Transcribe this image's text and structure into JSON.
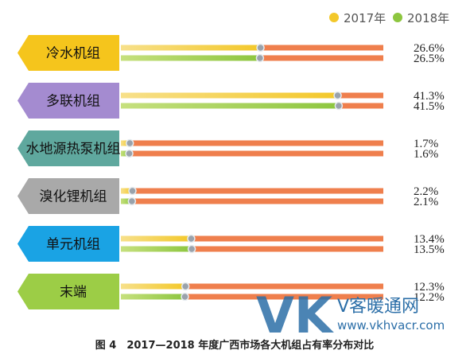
{
  "chart_data": {
    "type": "bar",
    "title": "",
    "caption": "图 4　2017—2018 年度广西市场各大机组占有率分布对比",
    "categories": [
      "冷水机组",
      "多联机组",
      "水地源热泵机组",
      "溴化锂机组",
      "单元机组",
      "末端"
    ],
    "series": [
      {
        "name": "2017年",
        "values": [
          26.6,
          41.3,
          1.7,
          2.2,
          13.4,
          12.3
        ]
      },
      {
        "name": "2018年",
        "values": [
          26.5,
          41.5,
          1.6,
          2.1,
          13.5,
          12.2
        ]
      }
    ],
    "value_labels": [
      [
        "26.6%",
        "26.5%"
      ],
      [
        "41.3%",
        "41.5%"
      ],
      [
        "1.7%",
        "1.6%"
      ],
      [
        "2.2%",
        "2.1%"
      ],
      [
        "13.4%",
        "13.5%"
      ],
      [
        "12.3%",
        "12.2%"
      ]
    ],
    "xlim": [
      0,
      50
    ],
    "legend_position": "top-right",
    "colors": {
      "series_2017": "#f3c82a",
      "series_2018": "#8dc63f",
      "track": "#ef7f4d",
      "marker": "#9aa2ab",
      "category_tabs": [
        "#f5c51c",
        "#a48bd0",
        "#5fa89e",
        "#a9a9a9",
        "#1aa3e4",
        "#9ccd46"
      ]
    }
  },
  "watermark": {
    "logo": "VK",
    "name": "V客暖通网",
    "url": "www.vkhvacr.com"
  }
}
